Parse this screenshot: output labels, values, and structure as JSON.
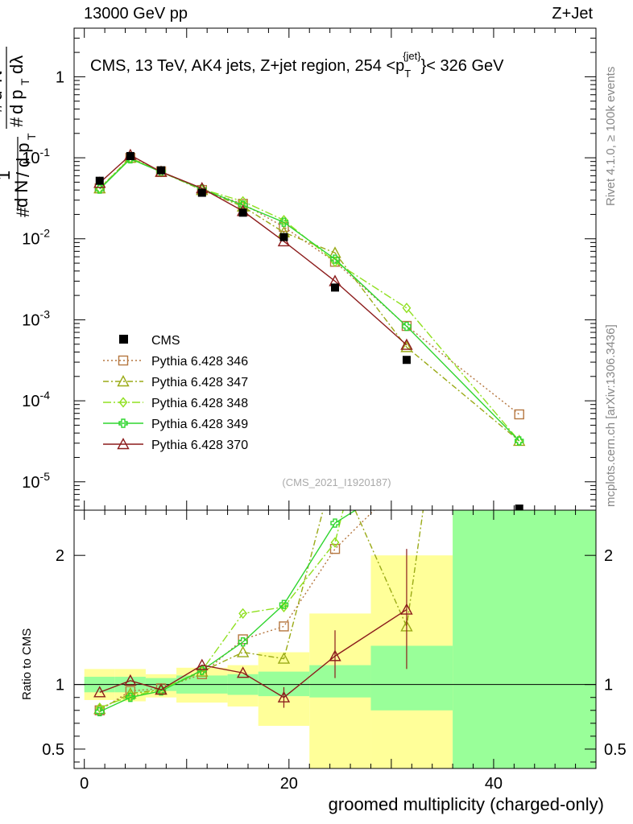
{
  "header": {
    "left": "13000 GeV pp",
    "right": "Z+Jet"
  },
  "side_labels": {
    "rivet": "Rivet 4.1.0, ≥ 100k events",
    "mcplots": "mcplots.cern.ch [arXiv:1306.3436]"
  },
  "chart_data": {
    "type": "scatter",
    "title_prefix": "CMS, 13 TeV, AK4 jets, Z+jet region, 254 <",
    "title_pt": "p",
    "title_sub": "T",
    "title_sup": "{jet}",
    "title_suffix": "}< 326 GeV",
    "ylabel_main": "1/N dN/dp_T d^2N/dp_T dλ",
    "ylabel_ratio": "Ratio to CMS",
    "xlabel": "groomed multiplicity (charged-only)",
    "analysis_id": "(CMS_2021_I1920187)",
    "xlim": [
      -1,
      50
    ],
    "ylim_main_log10": [
      -5.35,
      0.6
    ],
    "ylim_ratio": [
      0.35,
      2.35
    ],
    "x_ticks": [
      "0",
      "20",
      "40"
    ],
    "y_ticks_main": [
      "1",
      "10^-1",
      "10^-2",
      "10^-3",
      "10^-4",
      "10^-5"
    ],
    "y_ticks_ratio": [
      "0.5",
      "1",
      "2"
    ],
    "bins": [
      [
        0,
        3
      ],
      [
        3,
        6
      ],
      [
        6,
        9
      ],
      [
        9,
        14
      ],
      [
        14,
        17
      ],
      [
        17,
        22
      ],
      [
        22,
        28
      ],
      [
        28,
        36
      ],
      [
        36,
        50
      ]
    ],
    "bin_centers": [
      1.5,
      4.5,
      7.5,
      11.5,
      15.5,
      19.5,
      24.5,
      31.5,
      42.5
    ],
    "data": {
      "name": "CMS",
      "values": [
        0.052,
        0.105,
        0.07,
        0.037,
        0.021,
        0.0105,
        0.0025,
        0.00032,
        4.2e-06
      ],
      "stat_band": [
        [
          0.94,
          1.06
        ],
        [
          0.94,
          1.06
        ],
        [
          0.95,
          1.05
        ],
        [
          0.93,
          1.07
        ],
        [
          0.92,
          1.08
        ],
        [
          0.91,
          1.1
        ],
        [
          0.9,
          1.15
        ],
        [
          0.8,
          1.3
        ],
        [
          0.25,
          2.4
        ]
      ],
      "total_band": [
        [
          0.88,
          1.12
        ],
        [
          0.87,
          1.12
        ],
        [
          0.9,
          1.08
        ],
        [
          0.86,
          1.13
        ],
        [
          0.83,
          1.15
        ],
        [
          0.68,
          1.25
        ],
        [
          0.3,
          1.55
        ],
        [
          0.3,
          2.0
        ],
        [
          0.25,
          2.4
        ]
      ]
    },
    "series": [
      {
        "name": "Pythia 6.428 346",
        "color": "#b5763f",
        "marker": "square",
        "dash": "2,3",
        "values": [
          0.042,
          0.1,
          0.068,
          0.04,
          0.027,
          0.014,
          0.0052,
          0.00084,
          6.8e-05
        ],
        "ratio": [
          0.8,
          0.95,
          0.97,
          1.08,
          1.35,
          1.45,
          2.05,
          2.6,
          16.0
        ]
      },
      {
        "name": "Pythia 6.428 347",
        "color": "#9aaa17",
        "marker": "triangle",
        "dash": "7,3,2,3",
        "values": [
          0.042,
          0.1,
          0.067,
          0.04,
          0.025,
          0.012,
          0.0067,
          0.00046,
          3.2e-05
        ],
        "ratio": [
          0.81,
          0.93,
          0.96,
          1.1,
          1.25,
          1.2,
          2.7,
          1.45,
          7.6
        ]
      },
      {
        "name": "Pythia 6.428 348",
        "color": "#90e020",
        "marker": "diamond",
        "dash": "10,3,2,3",
        "values": [
          0.042,
          0.099,
          0.067,
          0.041,
          0.029,
          0.017,
          0.0052,
          0.0014,
          3.2e-05
        ],
        "ratio": [
          0.82,
          0.91,
          0.96,
          1.11,
          1.55,
          1.6,
          2.1,
          4.3,
          7.6
        ]
      },
      {
        "name": "Pythia 6.428 349",
        "color": "#2fd52f",
        "marker": "cross",
        "dash": "",
        "values": [
          0.041,
          0.097,
          0.067,
          0.041,
          0.026,
          0.016,
          0.0056,
          0.00083,
          3.2e-05
        ],
        "ratio": [
          0.79,
          0.9,
          0.95,
          1.11,
          1.33,
          1.62,
          2.25,
          2.6,
          7.6
        ]
      },
      {
        "name": "Pythia 6.428 370",
        "color": "#8c1c1c",
        "marker": "triangle",
        "dash": "",
        "values": [
          0.049,
          0.108,
          0.067,
          0.042,
          0.022,
          0.0093,
          0.003,
          0.00049,
          0.0
        ],
        "ratio": [
          0.94,
          1.03,
          0.96,
          1.15,
          1.09,
          0.9,
          1.22,
          1.58,
          0.0
        ]
      }
    ],
    "band_colors": {
      "stat": "#99ff99",
      "total": "#ffff99"
    },
    "legend_position": "lower-left"
  }
}
